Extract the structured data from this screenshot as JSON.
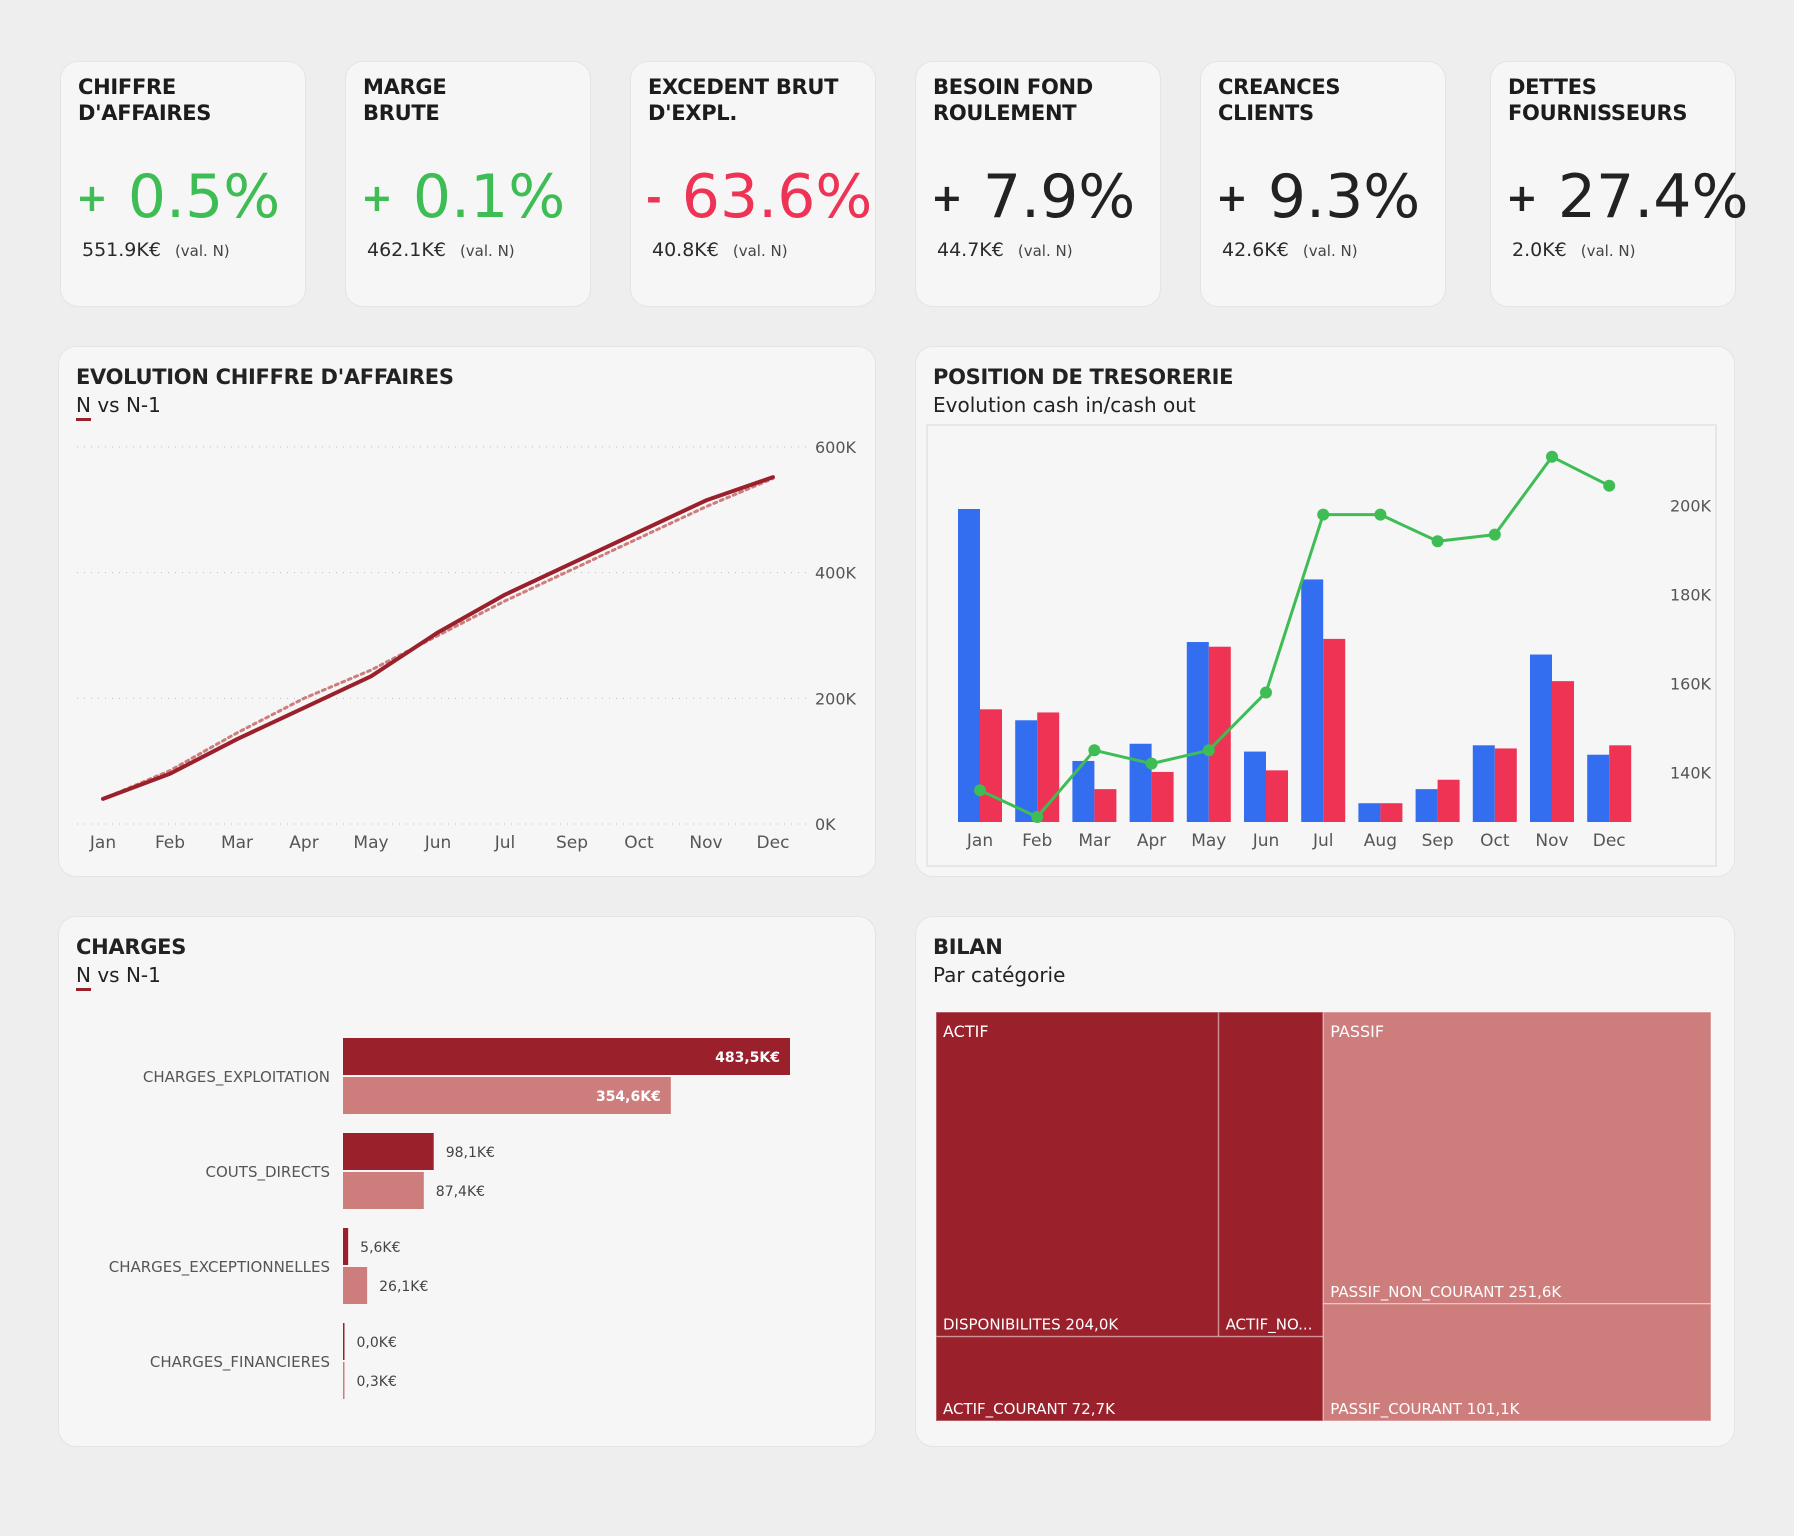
{
  "colors": {
    "positive": "#3fbd55",
    "negative": "#ee3355",
    "neutral": "#222222",
    "primary_dark": "#9a202b",
    "primary_light": "#ce7d7d",
    "cash_in": "#336ef0",
    "cash_out": "#ee3355",
    "trend": "#3fbd55"
  },
  "kpis": [
    {
      "title": "CHIFFRE\nD'AFFAIRES",
      "sign": "+",
      "value": "0.5%",
      "sub_value": "551.9K€",
      "sub_note": "(val. N)",
      "tone": "positive"
    },
    {
      "title": "MARGE\nBRUTE",
      "sign": "+",
      "value": "0.1%",
      "sub_value": "462.1K€",
      "sub_note": "(val. N)",
      "tone": "positive"
    },
    {
      "title": "EXCEDENT BRUT\nD'EXPL.",
      "sign": "-",
      "value": "63.6%",
      "sub_value": "40.8K€",
      "sub_note": "(val. N)",
      "tone": "negative"
    },
    {
      "title": "BESOIN FOND\nROULEMENT",
      "sign": "+",
      "value": "7.9%",
      "sub_value": "44.7K€",
      "sub_note": "(val. N)",
      "tone": "neutral"
    },
    {
      "title": "CREANCES\nCLIENTS",
      "sign": "+",
      "value": "9.3%",
      "sub_value": "42.6K€",
      "sub_note": "(val. N)",
      "tone": "neutral"
    },
    {
      "title": "DETTES\nFOURNISSEURS",
      "sign": "+",
      "value": "27.4%",
      "sub_value": "2.0K€",
      "sub_note": "(val. N)",
      "tone": "neutral"
    }
  ],
  "chart_data": [
    {
      "id": "evolution",
      "type": "line",
      "title": "EVOLUTION CHIFFRE D'AFFAIRES",
      "subtitle_n": "N",
      "subtitle_rest": " vs N-1",
      "categories": [
        "Jan",
        "Feb",
        "Mar",
        "Apr",
        "May",
        "Jun",
        "Jul",
        "Sep",
        "Oct",
        "Nov",
        "Dec"
      ],
      "series": [
        {
          "name": "N",
          "values": [
            40,
            80,
            135,
            185,
            235,
            305,
            365,
            415,
            465,
            515,
            552
          ],
          "style": "solid"
        },
        {
          "name": "N-1",
          "values": [
            40,
            85,
            145,
            200,
            245,
            300,
            355,
            405,
            455,
            505,
            550
          ],
          "style": "dotted"
        }
      ],
      "y_ticks": [
        0,
        200,
        400,
        600
      ],
      "y_tick_labels": [
        "0K",
        "200K",
        "400K",
        "600K"
      ],
      "ylim": [
        0,
        600
      ],
      "grid": true,
      "y_axis_position": "right"
    },
    {
      "id": "tresorerie",
      "type": "bar",
      "title": "POSITION DE TRESORERIE",
      "subtitle": "Evolution cash in/cash out",
      "categories": [
        "Jan",
        "Feb",
        "Mar",
        "Apr",
        "May",
        "Jun",
        "Jul",
        "Aug",
        "Sep",
        "Oct",
        "Nov",
        "Dec"
      ],
      "bar_series": [
        {
          "name": "cash in",
          "values": [
            100,
            32.5,
            19.5,
            25,
            57.5,
            22.5,
            77.5,
            6,
            10.5,
            24.5,
            53.5,
            21.5
          ]
        },
        {
          "name": "cash out",
          "values": [
            36,
            35,
            10.5,
            16,
            56,
            16.5,
            58.5,
            6,
            13.5,
            23.5,
            45,
            24.5
          ]
        }
      ],
      "bar_range": [
        0,
        100
      ],
      "line_series": {
        "name": "position",
        "values": [
          136,
          130,
          145,
          142,
          145,
          158,
          198,
          198,
          192,
          193.5,
          211,
          204.5
        ]
      },
      "y_ticks": [
        140,
        160,
        180,
        200
      ],
      "y_tick_labels": [
        "140K",
        "160K",
        "180K",
        "200K"
      ],
      "ylim": [
        130,
        215
      ],
      "y_axis_position": "right"
    },
    {
      "id": "charges",
      "type": "bar",
      "orientation": "horizontal",
      "title": "CHARGES",
      "subtitle_n": "N",
      "subtitle_rest": " vs N-1",
      "categories": [
        "CHARGES_EXPLOITATION",
        "COUTS_DIRECTS",
        "CHARGES_EXCEPTIONNELLES",
        "CHARGES_FINANCIERES"
      ],
      "series": [
        {
          "name": "N",
          "values": [
            483.5,
            98.1,
            5.6,
            0.0
          ],
          "labels": [
            "483,5K€",
            "98,1K€",
            "5,6K€",
            "0,0K€"
          ]
        },
        {
          "name": "N-1",
          "values": [
            354.6,
            87.4,
            26.1,
            0.3
          ],
          "labels": [
            "354,6K€",
            "87,4K€",
            "26,1K€",
            "0,3K€"
          ]
        }
      ],
      "xlim": [
        0,
        483.5
      ]
    },
    {
      "id": "bilan",
      "type": "treemap",
      "title": "BILAN",
      "subtitle": "Par catégorie",
      "groups": [
        {
          "name": "ACTIF",
          "tone": "dark",
          "items": [
            {
              "name": "DISPONIBILITES",
              "value": 204.0,
              "label": "DISPONIBILITES 204,0K"
            },
            {
              "name": "ACTIF_NON_COURANT",
              "value": 75.6,
              "label": "ACTIF_NO..."
            },
            {
              "name": "ACTIF_COURANT",
              "value": 72.7,
              "label": "ACTIF_COURANT 72,7K"
            }
          ]
        },
        {
          "name": "PASSIF",
          "tone": "light",
          "items": [
            {
              "name": "PASSIF_NON_COURANT",
              "value": 251.6,
              "label": "PASSIF_NON_COURANT 251,6K"
            },
            {
              "name": "PASSIF_COURANT",
              "value": 101.1,
              "label": "PASSIF_COURANT 101,1K"
            }
          ]
        }
      ]
    }
  ]
}
